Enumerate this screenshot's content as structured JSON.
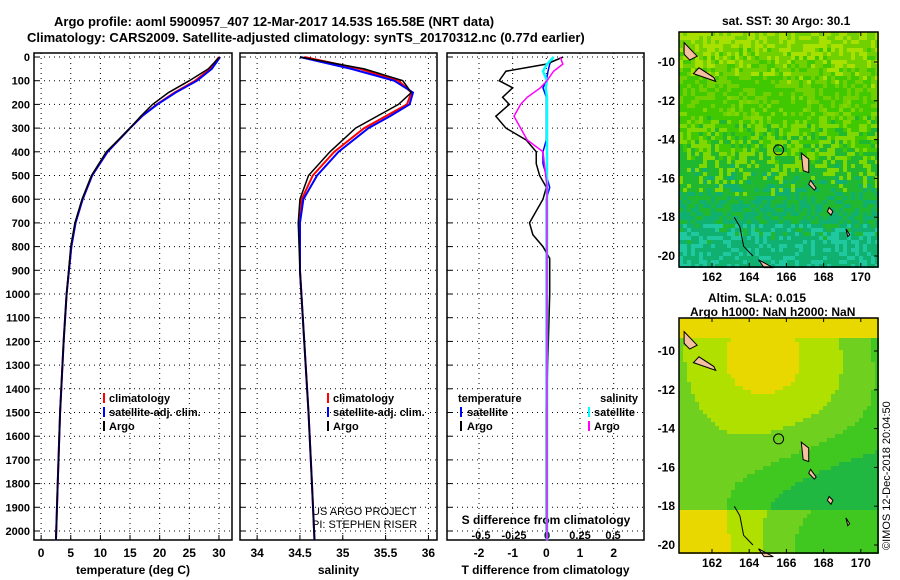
{
  "title_line1": "Argo profile: aoml 5900957_407 12-Mar-2017 14.53S 165.58E (NRT data)",
  "title_line2": "Climatology: CARS2009. Satellite-adjusted climatology: synTS_20170312.nc (0.77d earlier)",
  "credit1": "US ARGO PROJECT",
  "credit2": "PI: STEPHEN RISER",
  "timestamp": "©IMOS 12-Dec-2018 20:04:50",
  "map1_title": "sat. SST: 30 Argo: 30.1",
  "map2_title1": "Altim. SLA: 0.015",
  "map2_title2": "Argo h1000: NaN h2000: NaN",
  "colors": {
    "climatology": "#ff0000",
    "satellite": "#0000ff",
    "argo": "#000000",
    "s_satellite": "#00ffff",
    "s_argo": "#ff00ff"
  },
  "chart_data": [
    {
      "type": "line",
      "xlabel": "temperature (deg C)",
      "ylabel": "depth",
      "xlim": [
        -2,
        31.5
      ],
      "ylim": [
        2040,
        0
      ],
      "xticks": [
        "0",
        "5",
        "10",
        "15",
        "20",
        "25",
        "30"
      ],
      "xtick_vals": [
        0,
        5,
        10,
        15,
        20,
        25,
        30
      ],
      "yticks": [
        "0",
        "100",
        "200",
        "300",
        "400",
        "500",
        "600",
        "700",
        "800",
        "900",
        "1000",
        "1100",
        "1200",
        "1300",
        "1400",
        "1500",
        "1600",
        "1700",
        "1800",
        "1900",
        "2000"
      ],
      "legend": [
        "climatology",
        "satellite-adj. clim.",
        "Argo"
      ],
      "depth": [
        0,
        50,
        100,
        150,
        200,
        250,
        300,
        400,
        500,
        600,
        700,
        800,
        1000,
        1200,
        1500,
        1800,
        2040
      ],
      "series": [
        {
          "name": "climatology",
          "values": [
            30,
            28.5,
            26,
            22.5,
            19.5,
            17,
            15,
            11.2,
            8.6,
            7,
            5.8,
            5.1,
            4.3,
            3.8,
            3.2,
            2.8,
            2.5
          ]
        },
        {
          "name": "satellite-adj. clim.",
          "values": [
            30.2,
            28.8,
            26.3,
            22.7,
            19.6,
            17,
            15,
            11.2,
            8.6,
            7,
            5.8,
            5.1,
            4.3,
            3.8,
            3.2,
            2.8,
            2.5
          ]
        },
        {
          "name": "Argo",
          "values": [
            30.1,
            28.2,
            25,
            21.5,
            18.8,
            16.8,
            15,
            11,
            8.5,
            6.9,
            5.7,
            5,
            4.3,
            3.8,
            3.2,
            2.8,
            2.5
          ]
        }
      ]
    },
    {
      "type": "line",
      "xlabel": "salinity",
      "ylabel": "depth",
      "xlim": [
        33.8,
        36.1
      ],
      "ylim": [
        2040,
        0
      ],
      "xticks": [
        "34",
        "34.5",
        "35",
        "35.5",
        "36"
      ],
      "xtick_vals": [
        34,
        34.5,
        35,
        35.5,
        36
      ],
      "legend": [
        "climatology",
        "satellite-adj. clim.",
        "Argo"
      ],
      "depth": [
        0,
        50,
        100,
        150,
        200,
        250,
        300,
        400,
        500,
        600,
        700,
        900,
        1200,
        1500,
        1800,
        2040
      ],
      "series": [
        {
          "name": "climatology",
          "values": [
            34.55,
            35.2,
            35.65,
            35.8,
            35.75,
            35.5,
            35.25,
            34.9,
            34.65,
            34.52,
            34.5,
            34.5,
            34.55,
            34.6,
            34.64,
            34.67
          ]
        },
        {
          "name": "satellite-adj. clim.",
          "values": [
            34.5,
            35.1,
            35.6,
            35.82,
            35.78,
            35.55,
            35.3,
            34.95,
            34.7,
            34.54,
            34.5,
            34.5,
            34.55,
            34.6,
            34.64,
            34.67
          ]
        },
        {
          "name": "Argo",
          "values": [
            34.5,
            35.25,
            35.7,
            35.8,
            35.65,
            35.4,
            35.15,
            34.85,
            34.6,
            34.5,
            34.48,
            34.5,
            34.55,
            34.6,
            34.64,
            34.67
          ]
        }
      ]
    },
    {
      "type": "line",
      "xlabel": "T difference from climatology",
      "x2label": "S difference from climatology",
      "ylim": [
        2040,
        0
      ],
      "xlim": [
        -3,
        3
      ],
      "x2lim": [
        -0.75,
        0.75
      ],
      "xticks": [
        "-2",
        "-1",
        "0",
        "1",
        "2"
      ],
      "xtick_vals": [
        -2,
        -1,
        0,
        1,
        2
      ],
      "x2ticks": [
        "-0.5",
        "-0.25",
        "0",
        "0.25",
        "0.5"
      ],
      "x2tick_vals": [
        -0.5,
        -0.25,
        0,
        0.25,
        0.5
      ],
      "legend_t": {
        "title": "temperature",
        "items": [
          "satellite",
          "Argo"
        ]
      },
      "legend_s": {
        "title": "salinity",
        "items": [
          "satellite",
          "Argo"
        ]
      },
      "depth": [
        0,
        30,
        60,
        100,
        130,
        170,
        200,
        250,
        300,
        350,
        400,
        450,
        500,
        550,
        600,
        650,
        700,
        750,
        800,
        850,
        900,
        950,
        1000,
        1500,
        2040
      ],
      "series": [
        {
          "name": "T satellite",
          "axis": "T",
          "values": [
            0.2,
            0.1,
            0.05,
            0,
            -0.1,
            0,
            0,
            0,
            0,
            0,
            -0.1,
            -0.1,
            0,
            0.1,
            0,
            0,
            0,
            0,
            0,
            0,
            0,
            0,
            0,
            0,
            0
          ]
        },
        {
          "name": "T Argo",
          "axis": "T",
          "values": [
            0.5,
            0,
            -1.2,
            -1.4,
            -1,
            -1.3,
            -1.1,
            -1.5,
            -1.2,
            -0.6,
            -0.3,
            -0.3,
            -0.2,
            0,
            -0.1,
            -0.3,
            -0.5,
            -0.4,
            -0.1,
            0.1,
            0.1,
            0.1,
            0.1,
            0,
            0
          ]
        },
        {
          "name": "S satellite",
          "axis": "S",
          "values": [
            0.05,
            0,
            -0.03,
            0,
            -0.01,
            0,
            0,
            0,
            0,
            0,
            0,
            0,
            0,
            0,
            0,
            0,
            0,
            0,
            0,
            0,
            0,
            0,
            0,
            0,
            0
          ]
        },
        {
          "name": "S Argo",
          "axis": "S",
          "values": [
            0.1,
            0.12,
            0.05,
            0,
            -0.05,
            -0.15,
            -0.2,
            -0.25,
            -0.2,
            -0.15,
            -0.03,
            -0.02,
            -0.01,
            0,
            0,
            0,
            0,
            0,
            0,
            0,
            0,
            0,
            0,
            0,
            0
          ]
        }
      ]
    },
    {
      "type": "heatmap",
      "title": "sat. SST: 30 Argo: 30.1",
      "xticks": [
        "162",
        "164",
        "166",
        "168",
        "170"
      ],
      "yticks": [
        "-10",
        "-12",
        "-14",
        "-16",
        "-18",
        "-20"
      ],
      "argo_lon": 165.58,
      "argo_lat": -14.53
    },
    {
      "type": "heatmap",
      "title": "Altim. SLA: 0.015",
      "xticks": [
        "162",
        "164",
        "166",
        "168",
        "170"
      ],
      "yticks": [
        "-10",
        "-12",
        "-14",
        "-16",
        "-18",
        "-20"
      ],
      "argo_lon": 165.58,
      "argo_lat": -14.53
    }
  ]
}
